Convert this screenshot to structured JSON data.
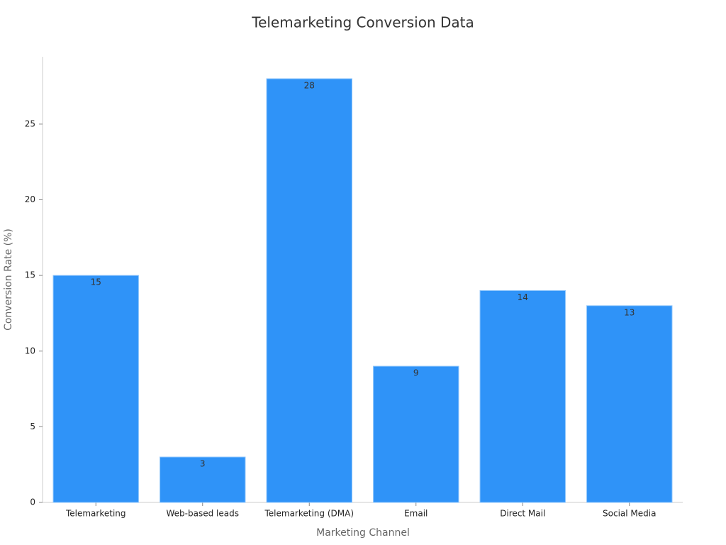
{
  "chart_data": {
    "type": "bar",
    "title": "Telemarketing Conversion Data",
    "x_label": "Marketing Channel",
    "y_label": "Conversion Rate (%)",
    "categories": [
      "Telemarketing",
      "Web-based leads",
      "Telemarketing (DMA)",
      "Email",
      "Direct Mail",
      "Social Media"
    ],
    "values": [
      15,
      3,
      28,
      9,
      14,
      13
    ],
    "color": "#2f93f8",
    "ylim": [
      0,
      29.45
    ],
    "yticks": [
      0,
      5,
      10,
      15,
      20,
      25
    ],
    "grid": false
  }
}
